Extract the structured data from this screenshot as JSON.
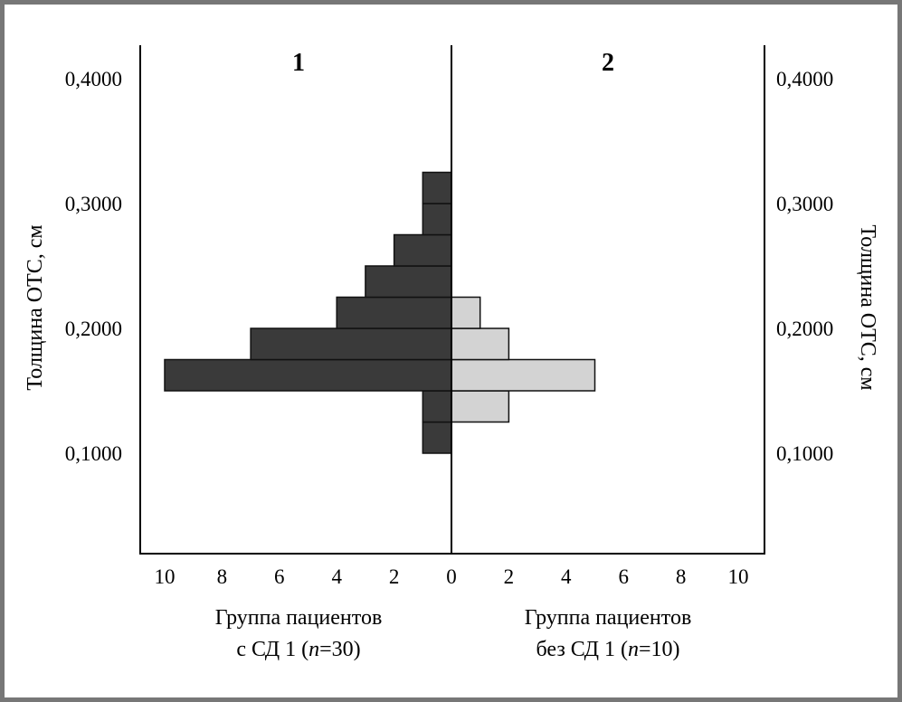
{
  "chart_data": {
    "type": "bar",
    "orientation": "horizontal-back-to-back",
    "bin_edges": [
      0.1,
      0.125,
      0.15,
      0.175,
      0.2,
      0.225,
      0.25,
      0.275,
      0.3,
      0.325
    ],
    "series": [
      {
        "name": "1",
        "side": "left",
        "color": "#3a3a3a",
        "values": [
          1,
          1,
          10,
          7,
          4,
          3,
          2,
          1,
          1
        ]
      },
      {
        "name": "2",
        "side": "right",
        "color": "#d3d3d3",
        "values": [
          0,
          2,
          5,
          2,
          1,
          0,
          0,
          0,
          0
        ]
      }
    ],
    "ylabel": "Толщина ОТС, см",
    "ylim": [
      0.02,
      0.427
    ],
    "xlim": [
      0,
      10.85
    ],
    "y_ticks": [
      "0,1000",
      "0,2000",
      "0,3000",
      "0,4000"
    ],
    "y_tick_values": [
      0.1,
      0.2,
      0.3,
      0.4
    ],
    "x_ticks_left": [
      "10",
      "8",
      "6",
      "4",
      "2"
    ],
    "x_ticks_right": [
      "0",
      "2",
      "4",
      "6",
      "8",
      "10"
    ],
    "panel_labels": [
      "1",
      "2"
    ],
    "xlabel_left": {
      "line1": "Группа пациентов",
      "pre": "с СД 1 (",
      "n": "n",
      "post": "=30)"
    },
    "xlabel_right": {
      "line1": "Группа пациентов",
      "pre": "без СД 1 (",
      "n": "n",
      "post": "=10)"
    },
    "grid": false
  }
}
